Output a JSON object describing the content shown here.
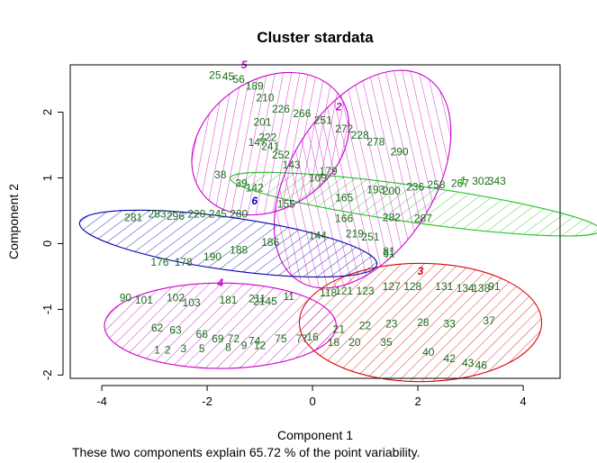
{
  "chart_data": {
    "type": "scatter",
    "title": "Cluster stardata",
    "xlabel": "Component 1",
    "ylabel": "Component 2",
    "xlim": [
      -4.6,
      4.7
    ],
    "ylim": [
      -2.05,
      2.72
    ],
    "xticks": [
      -4,
      -2,
      0,
      2,
      4
    ],
    "yticks": [
      -2,
      -1,
      0,
      1,
      2
    ],
    "grid": false,
    "caption": "These two components explain 65.72 % of the point variability.",
    "clusters": [
      {
        "label": "1",
        "color": "#22c522",
        "center": [
          1.95,
          0.6
        ],
        "rx": 3.55,
        "ry": 0.28,
        "angle": 8
      },
      {
        "label": "2",
        "color": "#cc00cc",
        "center": [
          0.95,
          0.98
        ],
        "rx": 2.28,
        "ry": 1.1,
        "angle": -58
      },
      {
        "label": "3",
        "color": "#dd0000",
        "center": [
          2.05,
          -1.2
        ],
        "rx": 2.3,
        "ry": 0.9,
        "angle": 0
      },
      {
        "label": "4",
        "color": "#cc00cc",
        "center": [
          -1.75,
          -1.25
        ],
        "rx": 2.2,
        "ry": 0.65,
        "angle": 0
      },
      {
        "label": "5",
        "color": "#cc00cc",
        "center": [
          -0.8,
          1.52
        ],
        "rx": 1.6,
        "ry": 0.98,
        "angle": -34
      },
      {
        "label": "6",
        "color": "#0000aa",
        "center": [
          -1.6,
          0.0
        ],
        "rx": 2.85,
        "ry": 0.4,
        "angle": 8
      }
    ],
    "cluster_label_positions": [
      {
        "label": "1",
        "x": 2.85,
        "y": 0.96
      },
      {
        "label": "2",
        "x": 0.5,
        "y": 2.08
      },
      {
        "label": "3",
        "x": 2.05,
        "y": -0.42
      },
      {
        "label": "4",
        "x": -1.75,
        "y": -0.6
      },
      {
        "label": "5",
        "x": -1.3,
        "y": 2.72
      },
      {
        "label": "6",
        "x": -1.1,
        "y": 0.65
      }
    ],
    "point_labels": [
      {
        "text": "25",
        "x": -1.85,
        "y": 2.56
      },
      {
        "text": "45",
        "x": -1.6,
        "y": 2.54
      },
      {
        "text": "56",
        "x": -1.4,
        "y": 2.5
      },
      {
        "text": "189",
        "x": -1.1,
        "y": 2.4
      },
      {
        "text": "210",
        "x": -0.9,
        "y": 2.22
      },
      {
        "text": "226",
        "x": -0.6,
        "y": 2.05
      },
      {
        "text": "266",
        "x": -0.2,
        "y": 1.98
      },
      {
        "text": "251",
        "x": 0.2,
        "y": 1.88
      },
      {
        "text": "272",
        "x": 0.6,
        "y": 1.75
      },
      {
        "text": "201",
        "x": -0.95,
        "y": 1.85
      },
      {
        "text": "222",
        "x": -0.85,
        "y": 1.62
      },
      {
        "text": "147",
        "x": -1.05,
        "y": 1.54
      },
      {
        "text": "241",
        "x": -0.8,
        "y": 1.48
      },
      {
        "text": "252",
        "x": -0.6,
        "y": 1.35
      },
      {
        "text": "143",
        "x": -0.4,
        "y": 1.2
      },
      {
        "text": "228",
        "x": 0.9,
        "y": 1.65
      },
      {
        "text": "278",
        "x": 1.2,
        "y": 1.55
      },
      {
        "text": "290",
        "x": 1.65,
        "y": 1.4
      },
      {
        "text": "38",
        "x": -1.75,
        "y": 1.05
      },
      {
        "text": "39",
        "x": -1.35,
        "y": 0.92
      },
      {
        "text": "142",
        "x": -1.1,
        "y": 0.85
      },
      {
        "text": "155",
        "x": -0.5,
        "y": 0.6
      },
      {
        "text": "109",
        "x": 0.1,
        "y": 1.0
      },
      {
        "text": "179",
        "x": 0.3,
        "y": 1.1
      },
      {
        "text": "165",
        "x": 0.6,
        "y": 0.7
      },
      {
        "text": "193",
        "x": 1.2,
        "y": 0.82
      },
      {
        "text": "200",
        "x": 1.5,
        "y": 0.8
      },
      {
        "text": "236",
        "x": 1.95,
        "y": 0.86
      },
      {
        "text": "258",
        "x": 2.35,
        "y": 0.9
      },
      {
        "text": "267",
        "x": 2.8,
        "y": 0.92
      },
      {
        "text": "302",
        "x": 3.2,
        "y": 0.95
      },
      {
        "text": "343",
        "x": 3.5,
        "y": 0.95
      },
      {
        "text": "282",
        "x": 1.5,
        "y": 0.4
      },
      {
        "text": "287",
        "x": 2.1,
        "y": 0.38
      },
      {
        "text": "166",
        "x": 0.6,
        "y": 0.38
      },
      {
        "text": "219",
        "x": 0.8,
        "y": 0.15
      },
      {
        "text": "251",
        "x": 1.1,
        "y": 0.1
      },
      {
        "text": "81",
        "x": 1.45,
        "y": -0.12
      },
      {
        "text": "61",
        "x": 1.45,
        "y": -0.15
      },
      {
        "text": "281",
        "x": -3.4,
        "y": 0.4
      },
      {
        "text": "283",
        "x": -2.95,
        "y": 0.45
      },
      {
        "text": "296",
        "x": -2.6,
        "y": 0.42
      },
      {
        "text": "220",
        "x": -2.2,
        "y": 0.45
      },
      {
        "text": "245",
        "x": -1.8,
        "y": 0.45
      },
      {
        "text": "280",
        "x": -1.4,
        "y": 0.45
      },
      {
        "text": "176",
        "x": -2.9,
        "y": -0.28
      },
      {
        "text": "178",
        "x": -2.45,
        "y": -0.28
      },
      {
        "text": "190",
        "x": -1.9,
        "y": -0.2
      },
      {
        "text": "188",
        "x": -1.4,
        "y": -0.1
      },
      {
        "text": "186",
        "x": -0.8,
        "y": 0.02
      },
      {
        "text": "144",
        "x": 0.1,
        "y": 0.12
      },
      {
        "text": "90",
        "x": -3.55,
        "y": -0.82
      },
      {
        "text": "101",
        "x": -3.2,
        "y": -0.86
      },
      {
        "text": "102",
        "x": -2.6,
        "y": -0.82
      },
      {
        "text": "103",
        "x": -2.3,
        "y": -0.9
      },
      {
        "text": "181",
        "x": -1.6,
        "y": -0.86
      },
      {
        "text": "211",
        "x": -1.05,
        "y": -0.84
      },
      {
        "text": "2145",
        "x": -0.9,
        "y": -0.88
      },
      {
        "text": "11",
        "x": -0.45,
        "y": -0.8
      },
      {
        "text": "118",
        "x": 0.3,
        "y": -0.75
      },
      {
        "text": "121",
        "x": 0.6,
        "y": -0.72
      },
      {
        "text": "123",
        "x": 1.0,
        "y": -0.72
      },
      {
        "text": "127",
        "x": 1.5,
        "y": -0.65
      },
      {
        "text": "128",
        "x": 1.9,
        "y": -0.65
      },
      {
        "text": "131",
        "x": 2.5,
        "y": -0.65
      },
      {
        "text": "134",
        "x": 2.9,
        "y": -0.68
      },
      {
        "text": "138",
        "x": 3.2,
        "y": -0.68
      },
      {
        "text": "91",
        "x": 3.45,
        "y": -0.65
      },
      {
        "text": "62",
        "x": -2.95,
        "y": -1.28
      },
      {
        "text": "63",
        "x": -2.6,
        "y": -1.32
      },
      {
        "text": "66",
        "x": -2.1,
        "y": -1.38
      },
      {
        "text": "69",
        "x": -1.8,
        "y": -1.45
      },
      {
        "text": "72",
        "x": -1.5,
        "y": -1.45
      },
      {
        "text": "74",
        "x": -1.1,
        "y": -1.48
      },
      {
        "text": "75",
        "x": -0.6,
        "y": -1.45
      },
      {
        "text": "77",
        "x": -0.2,
        "y": -1.45
      },
      {
        "text": "1",
        "x": -2.95,
        "y": -1.62
      },
      {
        "text": "2",
        "x": -2.75,
        "y": -1.62
      },
      {
        "text": "3",
        "x": -2.45,
        "y": -1.6
      },
      {
        "text": "5",
        "x": -2.1,
        "y": -1.6
      },
      {
        "text": "8",
        "x": -1.6,
        "y": -1.58
      },
      {
        "text": "9",
        "x": -1.3,
        "y": -1.55
      },
      {
        "text": "12",
        "x": -1.0,
        "y": -1.55
      },
      {
        "text": "16",
        "x": 0.0,
        "y": -1.42
      },
      {
        "text": "18",
        "x": 0.4,
        "y": -1.5
      },
      {
        "text": "20",
        "x": 0.8,
        "y": -1.5
      },
      {
        "text": "21",
        "x": 0.5,
        "y": -1.3
      },
      {
        "text": "22",
        "x": 1.0,
        "y": -1.25
      },
      {
        "text": "23",
        "x": 1.5,
        "y": -1.22
      },
      {
        "text": "28",
        "x": 2.1,
        "y": -1.2
      },
      {
        "text": "33",
        "x": 2.6,
        "y": -1.22
      },
      {
        "text": "35",
        "x": 1.4,
        "y": -1.5
      },
      {
        "text": "37",
        "x": 3.35,
        "y": -1.17
      },
      {
        "text": "40",
        "x": 2.2,
        "y": -1.65
      },
      {
        "text": "42",
        "x": 2.6,
        "y": -1.75
      },
      {
        "text": "43",
        "x": 2.95,
        "y": -1.82
      },
      {
        "text": "46",
        "x": 3.2,
        "y": -1.85
      }
    ]
  }
}
